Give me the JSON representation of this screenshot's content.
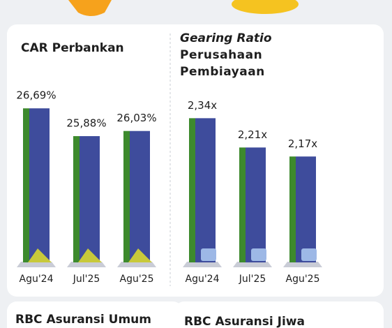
{
  "chart_data": [
    {
      "type": "bar",
      "title": "CAR Perbankan",
      "categories": [
        "Agu'24",
        "Jul'25",
        "Agu'25"
      ],
      "values": [
        26.69,
        25.88,
        26.03
      ],
      "value_labels": [
        "26,69%",
        "25,88%",
        "26,03%"
      ],
      "color": "#3e4c9c",
      "ylim": [
        22.2,
        27.0
      ]
    },
    {
      "type": "bar",
      "title": "Gearing Ratio",
      "subtitle": "Perusahaan Pembiayaan",
      "categories": [
        "Agu'24",
        "Jul'25",
        "Agu'25"
      ],
      "values": [
        2.34,
        2.21,
        2.17
      ],
      "value_labels": [
        "2,34x",
        "2,21x",
        "2,17x"
      ],
      "color": "#3e4c9c",
      "ylim": [
        1.7,
        2.4
      ]
    }
  ],
  "next_cards": [
    "RBC Asuransi Umum",
    "RBC Asuransi Jiwa"
  ]
}
